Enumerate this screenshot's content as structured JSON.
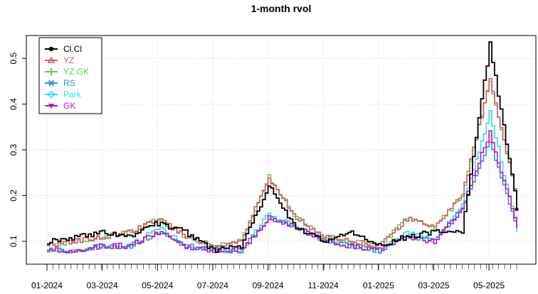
{
  "chart_data": {
    "type": "line",
    "title": "1-month rvol",
    "xlabel": "",
    "ylabel": "",
    "x_tick_labels": [
      "01-2024",
      "03-2024",
      "05-2024",
      "07-2024",
      "09-2024",
      "11-2024",
      "01-2025",
      "03-2025",
      "05-2025"
    ],
    "y_tick_labels": [
      "0.1",
      "0.2",
      "0.3",
      "0.4",
      "0.5"
    ],
    "ylim": [
      0.05,
      0.55
    ],
    "grid": true,
    "legend_position": "top-left",
    "x_months": [
      "2024-01",
      "2024-02",
      "2024-03",
      "2024-04",
      "2024-05",
      "2024-06",
      "2024-07",
      "2024-08",
      "2024-09",
      "2024-10",
      "2024-11",
      "2024-12",
      "2025-01",
      "2025-02",
      "2025-03",
      "2025-04",
      "2025-05",
      "2025-06"
    ],
    "series": [
      {
        "name": "Cl.Cl",
        "color": "#000000",
        "marker": "circle",
        "values": [
          0.1,
          0.11,
          0.12,
          0.11,
          0.14,
          0.12,
          0.08,
          0.09,
          0.22,
          0.13,
          0.1,
          0.12,
          0.09,
          0.11,
          0.12,
          0.12,
          0.53,
          0.17
        ]
      },
      {
        "name": "YZ",
        "color": "#DF536B",
        "marker": "triangle-up",
        "values": [
          0.09,
          0.1,
          0.11,
          0.12,
          0.15,
          0.11,
          0.09,
          0.1,
          0.24,
          0.15,
          0.11,
          0.1,
          0.09,
          0.15,
          0.13,
          0.2,
          0.45,
          0.19
        ]
      },
      {
        "name": "YZ.GK",
        "color": "#61D04F",
        "marker": "plus",
        "values": [
          0.09,
          0.1,
          0.11,
          0.12,
          0.15,
          0.11,
          0.09,
          0.1,
          0.24,
          0.15,
          0.11,
          0.1,
          0.09,
          0.15,
          0.13,
          0.2,
          0.45,
          0.19
        ]
      },
      {
        "name": "RS",
        "color": "#2297E6",
        "marker": "cross",
        "values": [
          0.08,
          0.08,
          0.09,
          0.09,
          0.12,
          0.09,
          0.08,
          0.08,
          0.15,
          0.13,
          0.1,
          0.09,
          0.08,
          0.11,
          0.1,
          0.17,
          0.32,
          0.13
        ]
      },
      {
        "name": "Park",
        "color": "#28E2E5",
        "marker": "diamond",
        "values": [
          0.08,
          0.08,
          0.09,
          0.09,
          0.13,
          0.09,
          0.08,
          0.08,
          0.16,
          0.13,
          0.1,
          0.09,
          0.08,
          0.12,
          0.1,
          0.18,
          0.38,
          0.12
        ]
      },
      {
        "name": "GK",
        "color": "#CD0BBC",
        "marker": "triangle-down",
        "values": [
          0.08,
          0.08,
          0.09,
          0.09,
          0.12,
          0.09,
          0.08,
          0.08,
          0.15,
          0.13,
          0.1,
          0.09,
          0.08,
          0.11,
          0.1,
          0.17,
          0.34,
          0.13
        ]
      }
    ]
  }
}
